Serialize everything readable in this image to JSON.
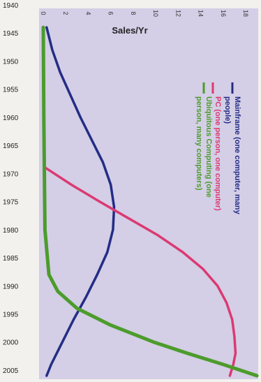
{
  "chart_data": {
    "type": "line",
    "title": "Sales/Yr",
    "orientation": "rotated: years run down the left axis, sales increase to the right",
    "y_axis": {
      "label": "",
      "ticks": [
        "1940",
        "1945",
        "1950",
        "1955",
        "1960",
        "1965",
        "1970",
        "1975",
        "1980",
        "1985",
        "1990",
        "1995",
        "2000",
        "2005"
      ],
      "range": [
        1940,
        2006
      ]
    },
    "x_axis": {
      "label": "Sales/Yr",
      "ticks": [
        "0",
        "2",
        "4",
        "6",
        "8",
        "10",
        "12",
        "14",
        "16",
        "18"
      ],
      "range": [
        0,
        18
      ],
      "tick_label_legibility": "low (blurred in source)"
    },
    "plot_background": "#d4cee6",
    "grid": false,
    "legend_position": "right, rotated text",
    "series": [
      {
        "name": "Mainframe (one computer, many people)",
        "color": "#232d86",
        "points": [
          [
            1944,
            0.3
          ],
          [
            1948,
            0.8
          ],
          [
            1952,
            1.5
          ],
          [
            1956,
            2.4
          ],
          [
            1960,
            3.3
          ],
          [
            1964,
            4.3
          ],
          [
            1968,
            5.3
          ],
          [
            1972,
            6.0
          ],
          [
            1976,
            6.3
          ],
          [
            1980,
            6.2
          ],
          [
            1984,
            5.7
          ],
          [
            1988,
            4.8
          ],
          [
            1992,
            3.8
          ],
          [
            1996,
            2.7
          ],
          [
            2000,
            1.7
          ],
          [
            2004,
            0.7
          ],
          [
            2006,
            0.3
          ]
        ]
      },
      {
        "name": "PC (one person, one computer)",
        "color": "#db3a72",
        "points": [
          [
            1969,
            0.2
          ],
          [
            1972,
            2.5
          ],
          [
            1975,
            5.0
          ],
          [
            1978,
            7.6
          ],
          [
            1981,
            10.2
          ],
          [
            1984,
            12.4
          ],
          [
            1987,
            14.2
          ],
          [
            1990,
            15.5
          ],
          [
            1993,
            16.3
          ],
          [
            1996,
            16.8
          ],
          [
            1999,
            17.0
          ],
          [
            2002,
            17.1
          ],
          [
            2004,
            16.9
          ],
          [
            2006,
            16.6
          ]
        ]
      },
      {
        "name": "Ubiquitous Computing (one person, many computers)",
        "color": "#4c9c2c",
        "points": [
          [
            1944,
            0.0
          ],
          [
            1960,
            0.05
          ],
          [
            1980,
            0.15
          ],
          [
            1988,
            0.5
          ],
          [
            1991,
            1.3
          ],
          [
            1994,
            3.0
          ],
          [
            1997,
            6.0
          ],
          [
            2000,
            9.8
          ],
          [
            2002,
            12.8
          ],
          [
            2004,
            16.0
          ],
          [
            2006,
            19.0
          ]
        ]
      }
    ]
  }
}
